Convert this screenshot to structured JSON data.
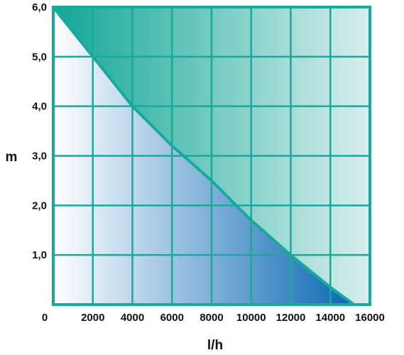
{
  "chart_data": {
    "type": "area",
    "title": "",
    "xlabel": "l/h",
    "ylabel": "m",
    "xlim": [
      0,
      16000
    ],
    "ylim": [
      0,
      6
    ],
    "x_ticks": [
      "0",
      "2000",
      "4000",
      "6000",
      "8000",
      "10000",
      "12000",
      "14000",
      "16000"
    ],
    "y_ticks": [
      "1,0",
      "2,0",
      "3,0",
      "4,0",
      "5,0",
      "6,0"
    ],
    "grid": true,
    "series": [
      {
        "x": [
          0,
          2000,
          4000,
          6000,
          8000,
          10000,
          12000,
          14000,
          15200
        ],
        "y": [
          6.0,
          5.0,
          4.0,
          3.2,
          2.5,
          1.7,
          1.0,
          0.35,
          0.0
        ]
      }
    ],
    "colors": {
      "frame": "#17aa9a",
      "grid": "#17aa9a",
      "curve": "#17aa9a",
      "below_gradient_start": "#ffffff",
      "below_gradient_end": "#0a68b4",
      "above_gradient_start": "#11a796",
      "above_gradient_end": "#d8eeee"
    }
  }
}
